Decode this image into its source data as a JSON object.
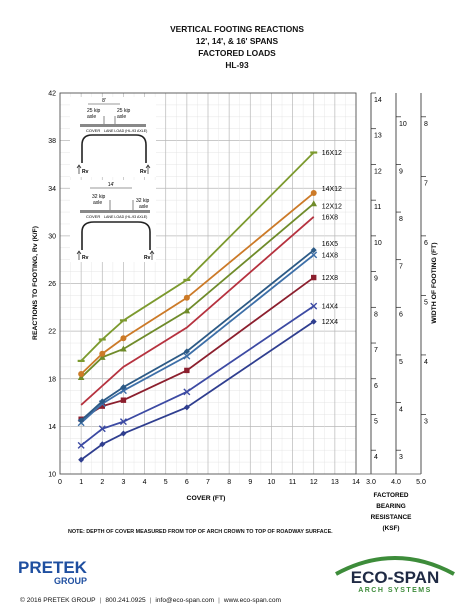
{
  "title_lines": [
    "VERTICAL FOOTING REACTIONS",
    "12', 14', & 16' SPANS",
    "FACTORED LOADS",
    "HL-93"
  ],
  "note": "NOTE:  DEPTH OF COVER MEASURED FROM TOP OF ARCH CROWN TO TOP OF ROADWAY SURFACE.",
  "colors": {
    "12X4": "#2f3e8f",
    "14X4": "#3c4aa3",
    "12X8": "#8c1f2e",
    "14X8": "#3d6fa8",
    "16X5": "#2c5a86",
    "16X8": "#b6323f",
    "12X12": "#6f8b2a",
    "14X12": "#cc7a28",
    "16X12": "#7c9a2e"
  },
  "inset": {
    "top": {
      "span_mark": "8'",
      "load_left": "25 kip",
      "axle_left": "axle",
      "load_right": "25 kip",
      "axle_right": "axle",
      "cover_label": "COVER",
      "lane_label": "LANE LOAD (HL-93 AXLE)",
      "rv_left": "Rv",
      "rv_right": "Rv"
    },
    "bottom": {
      "span_mark": "14'",
      "load_left": "32 kip",
      "axle_left": "axle",
      "load_right": "32 kip",
      "axle_right": "axle",
      "cover_label": "COVER",
      "lane_label": "LANE LOAD (HL-93 AXLE)",
      "rv_left": "Rv",
      "rv_right": "Rv"
    }
  },
  "chart_data": {
    "type": "line",
    "title": "VERTICAL FOOTING REACTIONS 12', 14', & 16' SPANS FACTORED LOADS HL-93",
    "xlabel": "COVER (FT)",
    "ylabel": "REACTIONS TO FOOTING, Rv (K/F)",
    "xlim": [
      0,
      14
    ],
    "ylim": [
      10,
      42
    ],
    "xticks": [
      0,
      1,
      2,
      3,
      4,
      5,
      6,
      7,
      8,
      9,
      10,
      11,
      12,
      13,
      14
    ],
    "yticks": [
      10,
      14,
      18,
      22,
      26,
      30,
      34,
      38,
      42
    ],
    "x": [
      1,
      2,
      3,
      6,
      12
    ],
    "series": [
      {
        "name": "12X4",
        "marker": "diamond",
        "values": [
          11.2,
          12.5,
          13.4,
          15.6,
          22.8
        ]
      },
      {
        "name": "14X4",
        "marker": "x",
        "values": [
          12.4,
          13.8,
          14.4,
          16.9,
          24.1
        ]
      },
      {
        "name": "12X8",
        "marker": "square",
        "values": [
          14.6,
          15.7,
          16.2,
          18.7,
          26.5
        ]
      },
      {
        "name": "14X8",
        "marker": "x",
        "values": [
          14.3,
          15.9,
          17.0,
          19.9,
          28.4
        ]
      },
      {
        "name": "16X5",
        "marker": "diamond",
        "values": [
          14.5,
          16.1,
          17.3,
          20.3,
          28.8
        ]
      },
      {
        "name": "16X8",
        "marker": "none",
        "values": [
          15.8,
          17.4,
          19.0,
          22.3,
          31.6
        ]
      },
      {
        "name": "12X12",
        "marker": "triangle",
        "values": [
          18.1,
          19.8,
          20.5,
          23.7,
          32.7
        ]
      },
      {
        "name": "14X12",
        "marker": "circle",
        "values": [
          18.4,
          20.1,
          21.4,
          24.8,
          33.6
        ]
      },
      {
        "name": "16X12",
        "marker": "dash",
        "values": [
          19.5,
          21.3,
          22.9,
          26.3,
          37.0
        ]
      }
    ],
    "grid": true,
    "right_axis": {
      "label": "WIDTH OF FOOTING (FT)",
      "xlabel_lines": [
        "FACTORED",
        "BEARING",
        "RESISTANCE",
        "(KSF)"
      ],
      "columns": [
        {
          "ksf": "3.0",
          "scale": {
            "from": 3,
            "to": 14,
            "divisor": 3
          },
          "labels": [
            "3",
            "4",
            "5",
            "6",
            "7",
            "8",
            "9",
            "10",
            "11",
            "12",
            "13",
            "14"
          ]
        },
        {
          "ksf": "4.0",
          "scale": {
            "from": 3,
            "to": 10,
            "divisor": 4
          },
          "labels": [
            "3",
            "4",
            "5",
            "6",
            "7",
            "8",
            "9",
            "10"
          ]
        },
        {
          "ksf": "5.0",
          "scale": {
            "from": 3,
            "to": 8,
            "divisor": 5
          },
          "labels": [
            "3",
            "4",
            "5",
            "6",
            "7",
            "8"
          ]
        }
      ]
    }
  },
  "footer": {
    "copyright": "© 2016 PRETEK GROUP",
    "phone": "800.241.0925",
    "email": "info@eco-span.com",
    "web": "www.eco-span.com"
  },
  "logos": {
    "pretek_name": "PRETEK",
    "pretek_sub": "GROUP",
    "ecospan_name": "ECO-SPAN",
    "ecospan_sub": "ARCH SYSTEMS"
  }
}
